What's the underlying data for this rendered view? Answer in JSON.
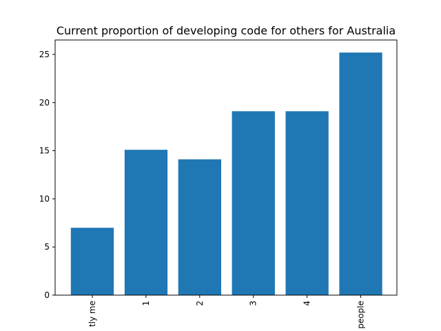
{
  "chart_data": {
    "type": "bar",
    "title": "Current proportion of developing code for others for Australia",
    "xlabel": "",
    "ylabel": "",
    "categories": [
      "tly me",
      "1",
      "2",
      "3",
      "4",
      "people"
    ],
    "values": [
      7.0,
      15.1,
      14.1,
      19.1,
      19.1,
      25.2
    ],
    "ylim": [
      0,
      26.5
    ],
    "yticks": [
      "0",
      "5",
      "10",
      "15",
      "20",
      "25"
    ],
    "bar_color": "#1f77b4",
    "grid": false,
    "legend": "none"
  }
}
